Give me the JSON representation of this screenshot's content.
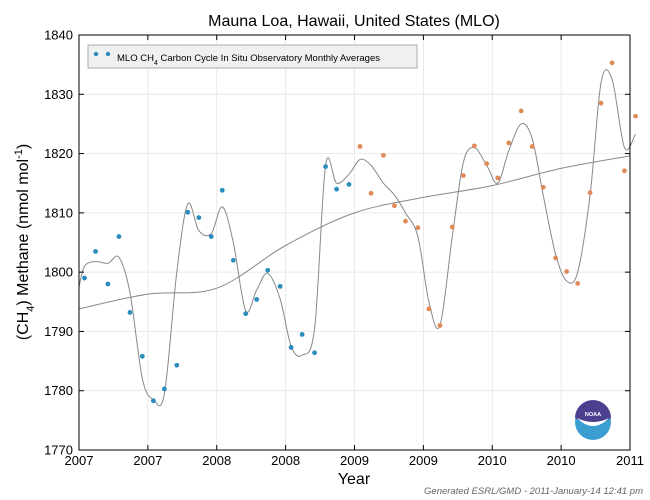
{
  "chart_data": {
    "type": "scatter",
    "title": "Mauna Loa, Hawaii, United States (MLO)",
    "xlabel": "Year",
    "ylabel_parts": {
      "open": "(CH",
      "sub_species": "4",
      "mid": ") Methane (nmol mol",
      "sup_exp": "-1",
      "close": ")"
    },
    "legend_parts": {
      "before": "MLO CH",
      "sub": "4",
      "after": " Carbon Cycle In Situ Observatory Monthly Averages"
    },
    "xlim": [
      2007.0,
      2011.0
    ],
    "ylim": [
      1770,
      1840
    ],
    "xticks": [
      {
        "value": 2007.0,
        "label": "2007"
      },
      {
        "value": 2007.5,
        "label": "2007"
      },
      {
        "value": 2008.0,
        "label": "2008"
      },
      {
        "value": 2008.5,
        "label": "2008"
      },
      {
        "value": 2009.0,
        "label": "2009"
      },
      {
        "value": 2009.5,
        "label": "2009"
      },
      {
        "value": 2010.0,
        "label": "2010"
      },
      {
        "value": 2010.5,
        "label": "2010"
      },
      {
        "value": 2011.0,
        "label": "2011"
      }
    ],
    "yticks": [
      1770,
      1780,
      1790,
      1800,
      1810,
      1820,
      1830,
      1840
    ],
    "grid": true,
    "legend_position": "top-left",
    "series": [
      {
        "name": "MLO CH4 Carbon Cycle In Situ Observatory Monthly Averages",
        "color": "#2b8cbe",
        "x": [
          2007.04,
          2007.12,
          2007.21,
          2007.29,
          2007.37,
          2007.46,
          2007.54,
          2007.62,
          2007.71,
          2007.79,
          2007.87,
          2007.96,
          2008.04,
          2008.12,
          2008.21,
          2008.29,
          2008.37,
          2008.46,
          2008.54,
          2008.62,
          2008.71,
          2008.79,
          2008.87,
          2008.96
        ],
        "y": [
          1799.0,
          1803.5,
          1798.0,
          1806.0,
          1793.2,
          1785.8,
          1778.3,
          1780.3,
          1784.3,
          1810.1,
          1809.2,
          1806.0,
          1813.8,
          1802.0,
          1793.0,
          1795.4,
          1800.3,
          1797.6,
          1787.3,
          1789.5,
          1786.4,
          1817.8,
          1814.0,
          1814.8
        ]
      },
      {
        "name": "",
        "color": "#e08a5a",
        "x": [
          2009.04,
          2009.12,
          2009.21,
          2009.29,
          2009.37,
          2009.46,
          2009.54,
          2009.62,
          2009.71,
          2009.79,
          2009.87,
          2009.96,
          2010.04,
          2010.12,
          2010.21,
          2010.29,
          2010.37,
          2010.46,
          2010.54,
          2010.62,
          2010.71,
          2010.79,
          2010.87,
          2010.96
        ],
        "y": [
          1821.2,
          1813.3,
          1819.7,
          1811.2,
          1808.6,
          1807.5,
          1793.8,
          1791.0,
          1807.6,
          1816.3,
          1821.3,
          1818.3,
          1815.9,
          1821.8,
          1827.2,
          1821.2,
          1814.3,
          1802.4,
          1800.1,
          1798.1,
          1813.4,
          1828.5,
          1835.3,
          1817.1
        ]
      },
      {
        "name": "",
        "color": "#e08a5a",
        "x": [
          2011.04
        ],
        "y": [
          1826.3
        ]
      }
    ],
    "trend": {
      "color": "#888888",
      "x": [
        2007.0,
        2007.5,
        2008.0,
        2008.5,
        2009.0,
        2009.5,
        2010.0,
        2010.5,
        2011.0
      ],
      "y": [
        1793.8,
        1796.3,
        1797.3,
        1804.5,
        1810.0,
        1812.6,
        1814.6,
        1817.5,
        1819.6
      ]
    },
    "smooth_curve": {
      "color": "#888888",
      "x": [
        2007.0,
        2007.04,
        2007.12,
        2007.21,
        2007.29,
        2007.37,
        2007.46,
        2007.54,
        2007.62,
        2007.71,
        2007.79,
        2007.87,
        2007.96,
        2008.04,
        2008.12,
        2008.21,
        2008.29,
        2008.37,
        2008.46,
        2008.54,
        2008.62,
        2008.71,
        2008.79,
        2008.87,
        2008.96,
        2009.04,
        2009.12,
        2009.21,
        2009.29,
        2009.37,
        2009.46,
        2009.54,
        2009.62,
        2009.71,
        2009.79,
        2009.87,
        2009.96,
        2010.04,
        2010.12,
        2010.21,
        2010.29,
        2010.37,
        2010.46,
        2010.54,
        2010.62,
        2010.71,
        2010.79,
        2010.87,
        2010.96,
        2011.04
      ],
      "y": [
        1797.5,
        1801.0,
        1801.8,
        1801.5,
        1802.5,
        1796.5,
        1782.0,
        1778.5,
        1779.5,
        1800.0,
        1811.5,
        1807.0,
        1806.5,
        1811.0,
        1805.0,
        1793.5,
        1797.0,
        1799.8,
        1795.5,
        1787.5,
        1786.0,
        1790.5,
        1818.0,
        1815.0,
        1816.5,
        1819.0,
        1818.0,
        1815.0,
        1813.0,
        1810.0,
        1806.0,
        1795.0,
        1791.0,
        1806.0,
        1818.5,
        1821.0,
        1818.0,
        1815.0,
        1820.5,
        1825.0,
        1822.5,
        1813.0,
        1803.0,
        1798.5,
        1800.0,
        1813.0,
        1832.0,
        1832.5,
        1821.0,
        1823.3
      ]
    }
  },
  "footer": {
    "generated": "Generated ESRL/GMD - 2011-January-14 12:41 pm"
  },
  "logo": {
    "text": "NOAA",
    "color_top": "#4b3f8f",
    "color_bottom": "#3a9fd0"
  }
}
